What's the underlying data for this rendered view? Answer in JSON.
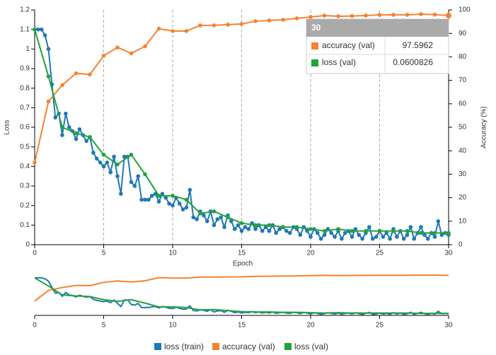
{
  "chart_data": {
    "type": "line",
    "xlabel": "Epoch",
    "ylabel": "Loss",
    "y2label": "Accuracy (%)",
    "xlim": [
      0,
      30
    ],
    "xticks": [
      0,
      5,
      10,
      15,
      20,
      25,
      30
    ],
    "ylim": [
      0,
      1.2
    ],
    "yticks": [
      0,
      0.1,
      0.2,
      0.3,
      0.4,
      0.5,
      0.6,
      0.7,
      0.8,
      0.9,
      1,
      1.1,
      1.2
    ],
    "y2lim": [
      0,
      100
    ],
    "y2ticks": [
      0,
      10,
      20,
      30,
      40,
      50,
      60,
      70,
      80,
      90,
      100
    ],
    "grid": "x",
    "legend": "bottom",
    "series": [
      {
        "name": "loss (train)",
        "color": "#1f78b4",
        "x": [
          0,
          0.25,
          0.5,
          0.75,
          1,
          1.25,
          1.5,
          1.75,
          2,
          2.25,
          2.5,
          2.75,
          3,
          3.25,
          3.5,
          3.75,
          4,
          4.25,
          4.5,
          4.75,
          5,
          5.25,
          5.5,
          5.75,
          6,
          6.25,
          6.5,
          6.75,
          7,
          7.25,
          7.5,
          7.75,
          8,
          8.25,
          8.5,
          8.75,
          9,
          9.25,
          9.5,
          9.75,
          10,
          10.25,
          10.5,
          10.75,
          11,
          11.25,
          11.5,
          11.75,
          12,
          12.25,
          12.5,
          12.75,
          13,
          13.25,
          13.5,
          13.75,
          14,
          14.25,
          14.5,
          14.75,
          15,
          15.25,
          15.5,
          15.75,
          16,
          16.25,
          16.5,
          16.75,
          17,
          17.25,
          17.5,
          17.75,
          18,
          18.25,
          18.5,
          18.75,
          19,
          19.25,
          19.5,
          19.75,
          20,
          20.25,
          20.5,
          20.75,
          21,
          21.25,
          21.5,
          21.75,
          22,
          22.25,
          22.5,
          22.75,
          23,
          23.25,
          23.5,
          23.75,
          24,
          24.25,
          24.5,
          24.75,
          25,
          25.25,
          25.5,
          25.75,
          26,
          26.25,
          26.5,
          26.75,
          27,
          27.25,
          27.5,
          27.75,
          28,
          28.25,
          28.5,
          28.75,
          29,
          29.25,
          29.5,
          29.75,
          30
        ],
        "values": [
          1.1,
          1.1,
          1.1,
          1.07,
          1.0,
          0.82,
          0.65,
          0.67,
          0.56,
          0.67,
          0.6,
          0.58,
          0.54,
          0.59,
          0.56,
          0.53,
          0.55,
          0.47,
          0.44,
          0.42,
          0.4,
          0.42,
          0.37,
          0.45,
          0.35,
          0.26,
          0.45,
          0.45,
          0.32,
          0.3,
          0.35,
          0.23,
          0.23,
          0.23,
          0.25,
          0.26,
          0.22,
          0.26,
          0.24,
          0.21,
          0.2,
          0.24,
          0.21,
          0.18,
          0.19,
          0.28,
          0.14,
          0.13,
          0.17,
          0.15,
          0.12,
          0.17,
          0.1,
          0.13,
          0.14,
          0.09,
          0.15,
          0.12,
          0.08,
          0.1,
          0.07,
          0.09,
          0.08,
          0.11,
          0.08,
          0.1,
          0.07,
          0.09,
          0.07,
          0.1,
          0.06,
          0.08,
          0.09,
          0.07,
          0.06,
          0.09,
          0.08,
          0.05,
          0.09,
          0.07,
          0.04,
          0.08,
          0.06,
          0.03,
          0.05,
          0.08,
          0.06,
          0.04,
          0.07,
          0.03,
          0.06,
          0.07,
          0.04,
          0.08,
          0.05,
          0.03,
          0.06,
          0.09,
          0.03,
          0.04,
          0.07,
          0.04,
          0.06,
          0.03,
          0.08,
          0.04,
          0.07,
          0.03,
          0.05,
          0.09,
          0.03,
          0.06,
          0.09,
          0.05,
          0.03,
          0.06,
          0.04,
          0.12,
          0.05,
          0.06,
          0.05
        ]
      },
      {
        "name": "accuracy (val)",
        "color": "#f58231",
        "axis": "y2",
        "x": [
          0,
          1,
          2,
          3,
          4,
          5,
          6,
          7,
          8,
          9,
          10,
          11,
          12,
          13,
          14,
          15,
          16,
          17,
          18,
          19,
          20,
          21,
          22,
          23,
          24,
          25,
          26,
          27,
          28,
          29,
          30
        ],
        "values": [
          35,
          61,
          68,
          73,
          72.5,
          80.5,
          84,
          81.5,
          84.5,
          92,
          91,
          91,
          93.4,
          93.4,
          93.7,
          94,
          95.2,
          95.5,
          95.8,
          96.4,
          97,
          97.6,
          97.3,
          97.4,
          97.6,
          97.9,
          97.9,
          97.9,
          98.2,
          98,
          97.5962
        ]
      },
      {
        "name": "loss (val)",
        "color": "#23a33a",
        "x": [
          0,
          1,
          2,
          3,
          4,
          5,
          6,
          7,
          8,
          9,
          10,
          11,
          12,
          13,
          14,
          15,
          16,
          17,
          18,
          19,
          20,
          21,
          22,
          23,
          24,
          25,
          26,
          27,
          28,
          29,
          30
        ],
        "values": [
          1.1,
          0.86,
          0.6,
          0.57,
          0.55,
          0.46,
          0.41,
          0.46,
          0.36,
          0.25,
          0.25,
          0.23,
          0.16,
          0.17,
          0.14,
          0.11,
          0.1,
          0.1,
          0.09,
          0.09,
          0.08,
          0.07,
          0.08,
          0.07,
          0.07,
          0.07,
          0.07,
          0.07,
          0.06,
          0.06,
          0.0600826
        ]
      }
    ]
  }
}
